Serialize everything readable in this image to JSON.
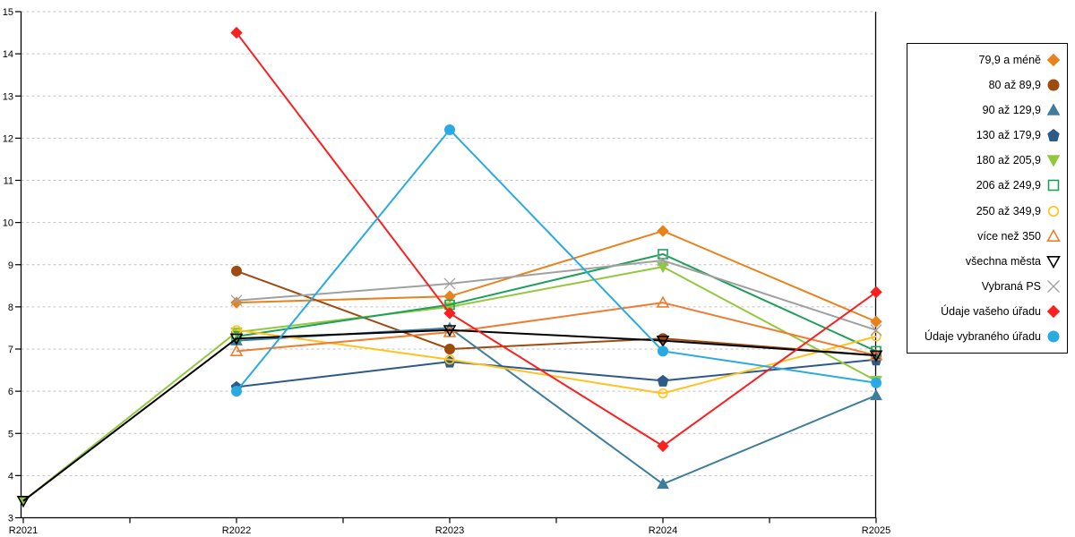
{
  "chart_data": {
    "type": "line",
    "title": "",
    "xlabel": "",
    "ylabel": "",
    "categories": [
      "R2021",
      "R2022",
      "R2023",
      "R2024",
      "R2025"
    ],
    "y_ticks": [
      "3",
      "4",
      "5",
      "6",
      "7",
      "8",
      "9",
      "10",
      "11",
      "12",
      "13",
      "14",
      "15"
    ],
    "ylim": [
      3,
      15
    ],
    "grid": "horizontal-dashed",
    "legend_position": "right",
    "series": [
      {
        "name": "79,9 a méně",
        "color": "#E8821C",
        "marker": "diamond",
        "filled": true,
        "values": [
          null,
          8.1,
          8.25,
          9.8,
          7.65
        ]
      },
      {
        "name": "80 až 89,9",
        "color": "#9E4B10",
        "marker": "circle",
        "filled": true,
        "values": [
          null,
          8.85,
          7.0,
          7.25,
          6.85
        ]
      },
      {
        "name": "90 až 129,9",
        "color": "#3E7E9C",
        "marker": "triangle-up",
        "filled": true,
        "values": [
          null,
          7.2,
          7.5,
          3.8,
          5.9
        ]
      },
      {
        "name": "130 až 179,9",
        "color": "#2E5A87",
        "marker": "pentagon",
        "filled": true,
        "values": [
          null,
          6.1,
          6.7,
          6.25,
          6.75
        ]
      },
      {
        "name": "180 až 205,9",
        "color": "#92C83D",
        "marker": "triangle-down",
        "filled": true,
        "values": [
          3.4,
          7.4,
          8.0,
          8.95,
          6.25
        ]
      },
      {
        "name": "206 až 249,9",
        "color": "#1FA05A",
        "marker": "square",
        "filled": false,
        "values": [
          null,
          7.3,
          8.05,
          9.25,
          6.95
        ]
      },
      {
        "name": "250 až 349,9",
        "color": "#FFC21E",
        "marker": "circle",
        "filled": false,
        "values": [
          null,
          7.45,
          6.75,
          5.95,
          7.3
        ]
      },
      {
        "name": "více než 350",
        "color": "#ED7D31",
        "marker": "triangle-up",
        "filled": false,
        "values": [
          null,
          6.95,
          7.4,
          8.1,
          6.85
        ]
      },
      {
        "name": "všechna města",
        "color": "#000000",
        "marker": "triangle-down",
        "filled": false,
        "values": [
          3.4,
          7.25,
          7.45,
          7.2,
          6.85
        ]
      },
      {
        "name": "Vybraná PS",
        "color": "#A0A0A0",
        "marker": "x",
        "filled": false,
        "values": [
          null,
          8.15,
          8.55,
          9.1,
          7.45
        ]
      },
      {
        "name": "Údaje vašeho úřadu",
        "color": "#FB2020",
        "marker": "diamond",
        "filled": true,
        "values": [
          null,
          14.5,
          7.85,
          4.7,
          8.35
        ]
      },
      {
        "name": "Údaje vybraného úřadu",
        "color": "#29ABE2",
        "marker": "circle",
        "filled": true,
        "values": [
          null,
          6.0,
          12.2,
          6.95,
          6.2
        ]
      }
    ]
  },
  "style_colors": {
    "gridline": "#C3C3C3",
    "axis": "#000000",
    "tick_label": "#000000"
  }
}
